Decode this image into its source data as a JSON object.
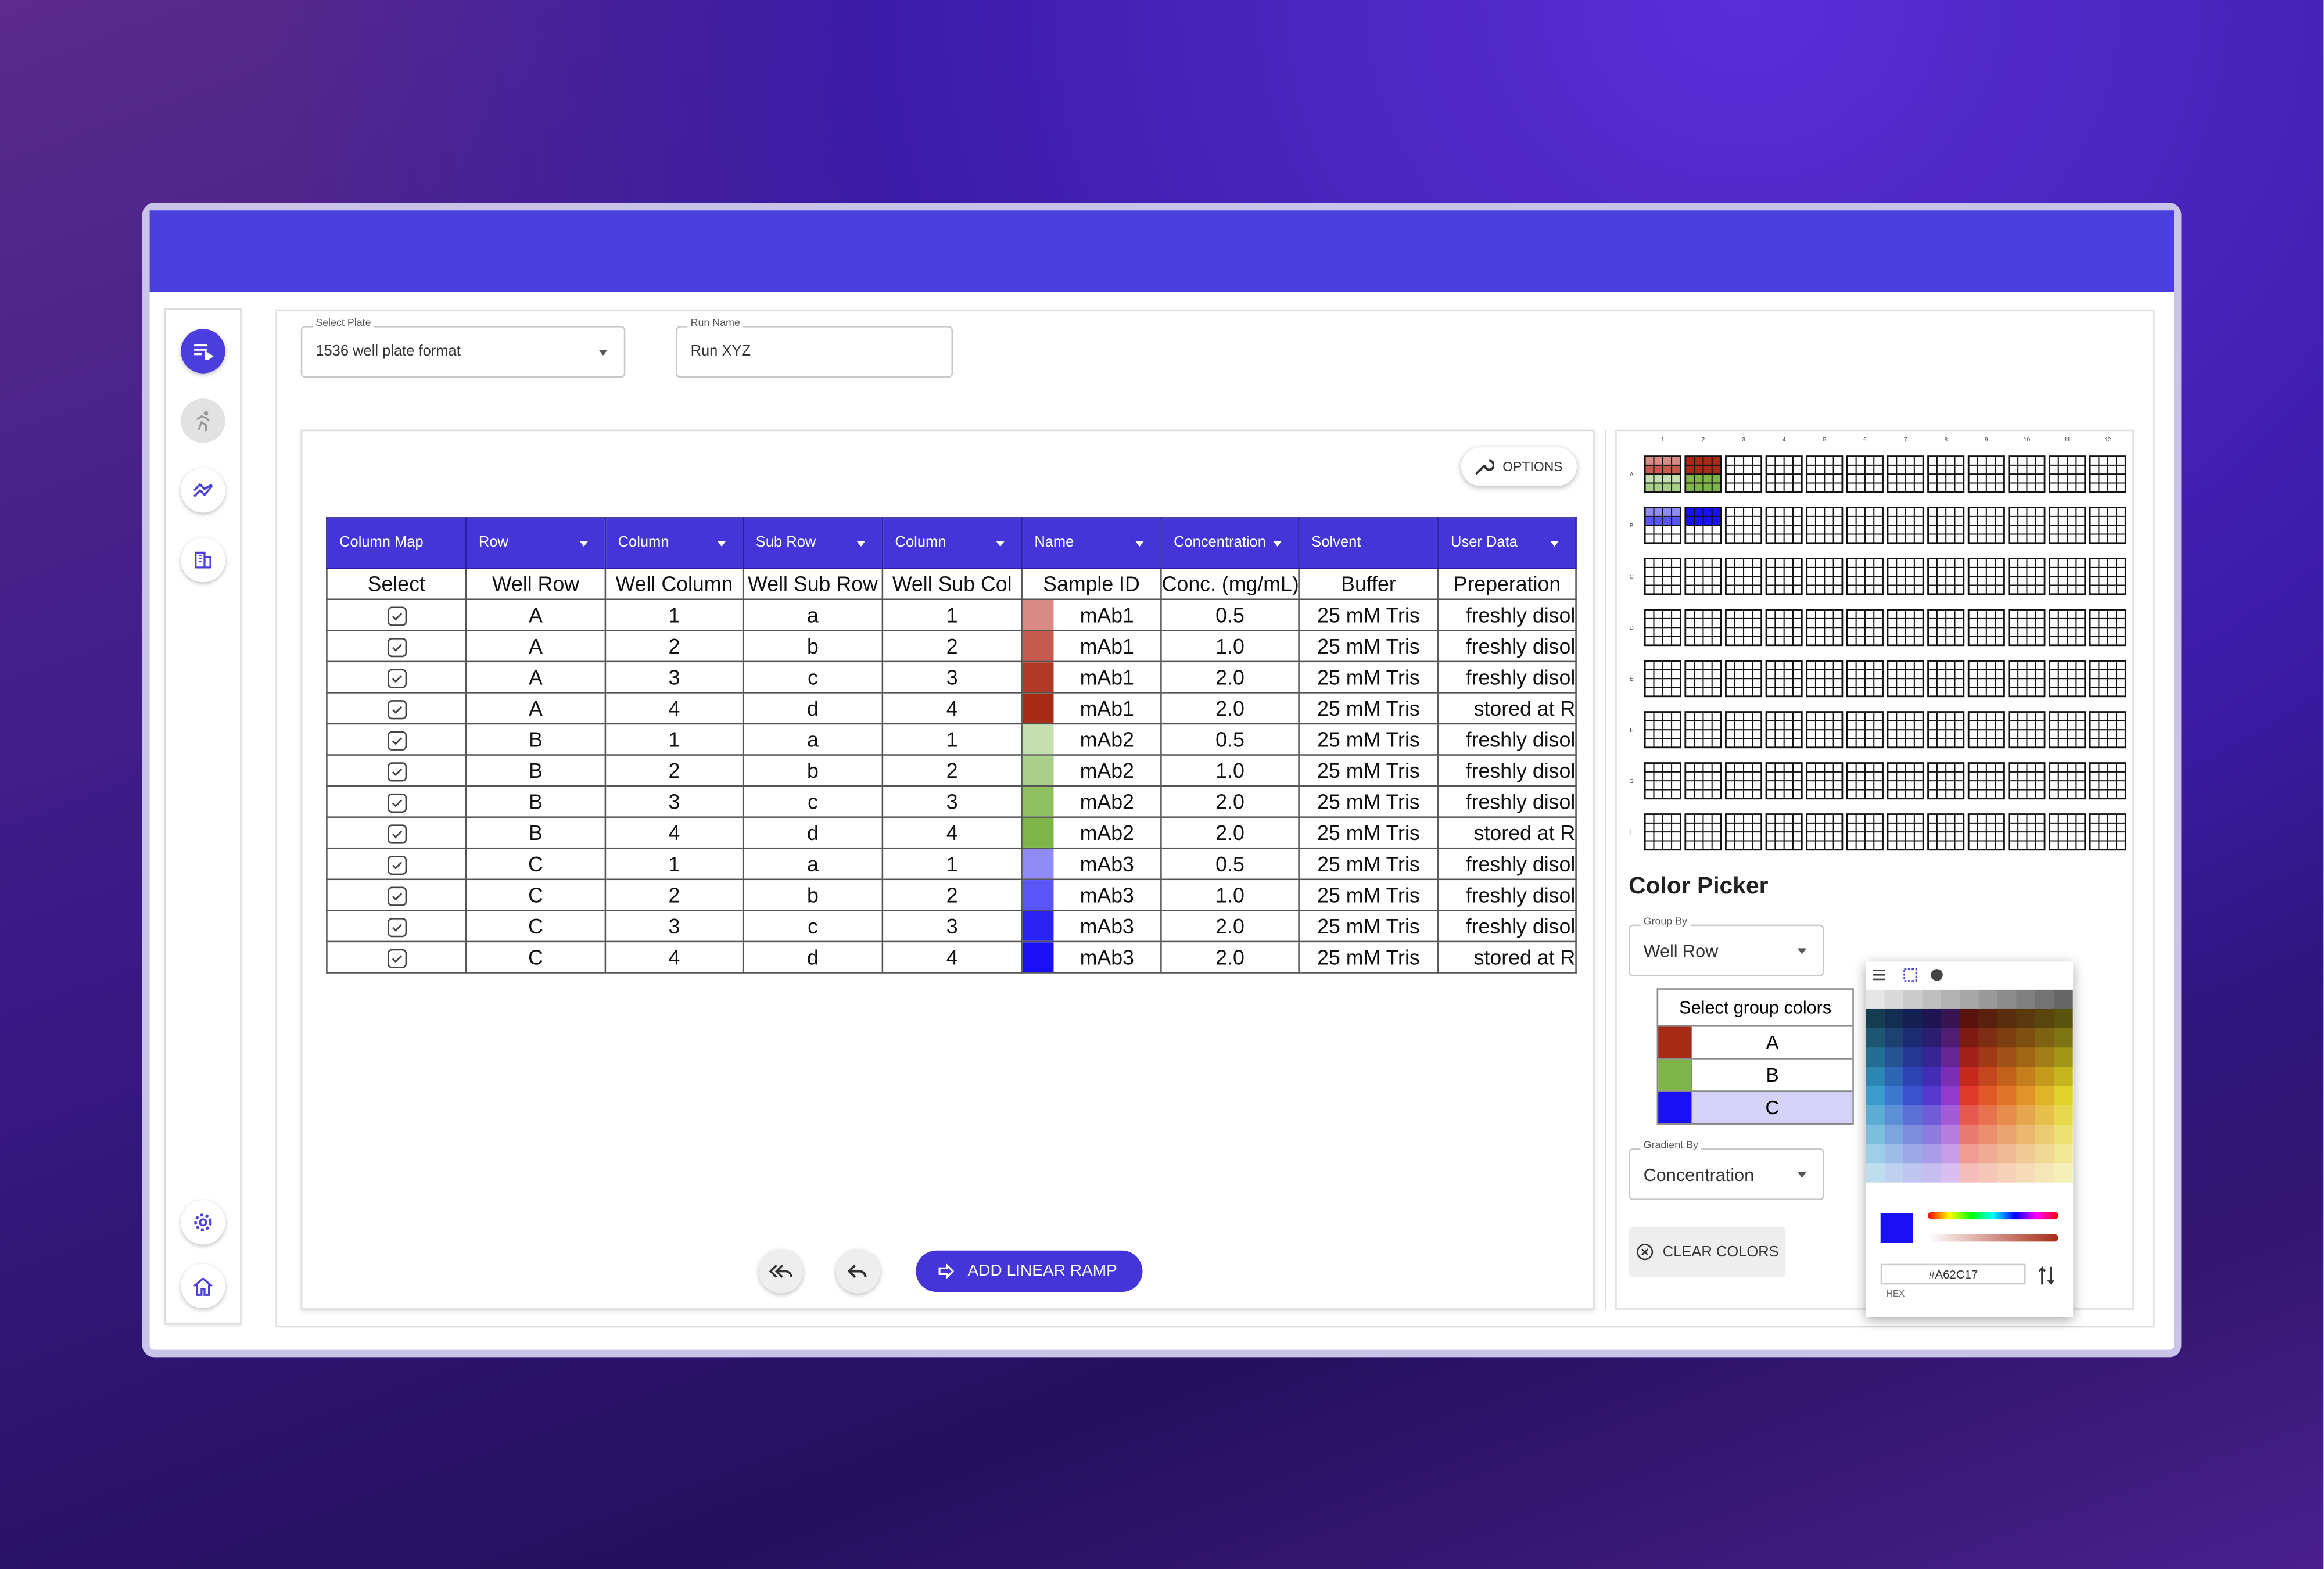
{
  "select_plate": {
    "label": "Select Plate",
    "value": "1536 well plate format"
  },
  "run_name": {
    "label": "Run Name",
    "value": "Run XYZ"
  },
  "options_button": "OPTIONS",
  "table": {
    "column_map": [
      "Column Map",
      "Row",
      "Column",
      "Sub Row",
      "Column",
      "Name",
      "Concentration",
      "Solvent",
      "User Data"
    ],
    "headers": [
      "Select",
      "Well Row",
      "Well Column",
      "Well Sub Row",
      "Well Sub Col",
      "Sample ID",
      "Conc. (mg/mL)",
      "Buffer",
      "Preperation"
    ],
    "rows": [
      {
        "color": "#d98a85",
        "cells": [
          "A",
          "1",
          "a",
          "1",
          "mAb1",
          "0.5",
          "25 mM Tris",
          "freshly disol"
        ]
      },
      {
        "color": "#c65a4e",
        "cells": [
          "A",
          "2",
          "b",
          "2",
          "mAb1",
          "1.0",
          "25 mM Tris",
          "freshly disol"
        ]
      },
      {
        "color": "#b03a26",
        "cells": [
          "A",
          "3",
          "c",
          "3",
          "mAb1",
          "2.0",
          "25 mM Tris",
          "freshly disol"
        ]
      },
      {
        "color": "#a62c17",
        "cells": [
          "A",
          "4",
          "d",
          "4",
          "mAb1",
          "2.0",
          "25 mM Tris",
          "stored at R"
        ]
      },
      {
        "color": "#c5dfb0",
        "cells": [
          "B",
          "1",
          "a",
          "1",
          "mAb2",
          "0.5",
          "25 mM Tris",
          "freshly disol"
        ]
      },
      {
        "color": "#a9cf88",
        "cells": [
          "B",
          "2",
          "b",
          "2",
          "mAb2",
          "1.0",
          "25 mM Tris",
          "freshly disol"
        ]
      },
      {
        "color": "#8fbf5f",
        "cells": [
          "B",
          "3",
          "c",
          "3",
          "mAb2",
          "2.0",
          "25 mM Tris",
          "freshly disol"
        ]
      },
      {
        "color": "#7fb548",
        "cells": [
          "B",
          "4",
          "d",
          "4",
          "mAb2",
          "2.0",
          "25 mM Tris",
          "stored at R"
        ]
      },
      {
        "color": "#8f8cf7",
        "cells": [
          "C",
          "1",
          "a",
          "1",
          "mAb3",
          "0.5",
          "25 mM Tris",
          "freshly disol"
        ]
      },
      {
        "color": "#5a55f7",
        "cells": [
          "C",
          "2",
          "b",
          "2",
          "mAb3",
          "1.0",
          "25 mM Tris",
          "freshly disol"
        ]
      },
      {
        "color": "#2a22f5",
        "cells": [
          "C",
          "3",
          "c",
          "3",
          "mAb3",
          "2.0",
          "25 mM Tris",
          "freshly disol"
        ]
      },
      {
        "color": "#1a10f5",
        "cells": [
          "C",
          "4",
          "d",
          "4",
          "mAb3",
          "2.0",
          "25 mM Tris",
          "stored at R"
        ]
      }
    ]
  },
  "add_linear_ramp": "ADD LINEAR RAMP",
  "plate": {
    "column_labels": [
      "1",
      "2",
      "3",
      "4",
      "5",
      "6",
      "7",
      "8",
      "9",
      "10",
      "11",
      "12"
    ],
    "row_labels": [
      "A",
      "B",
      "C",
      "D",
      "E",
      "F",
      "G",
      "H"
    ]
  },
  "color_picker": {
    "title": "Color Picker",
    "group_by": {
      "label": "Group By",
      "value": "Well Row"
    },
    "group_colors_title": "Select group colors",
    "groups": [
      {
        "name": "A",
        "color": "#a62c17"
      },
      {
        "name": "B",
        "color": "#7fb548"
      },
      {
        "name": "C",
        "color": "#1a10f5"
      }
    ],
    "gradient_by": {
      "label": "Gradient By",
      "value": "Concentration"
    },
    "clear_colors": "CLEAR COLORS",
    "hex": "#A62C17",
    "hex_label": "HEX"
  }
}
